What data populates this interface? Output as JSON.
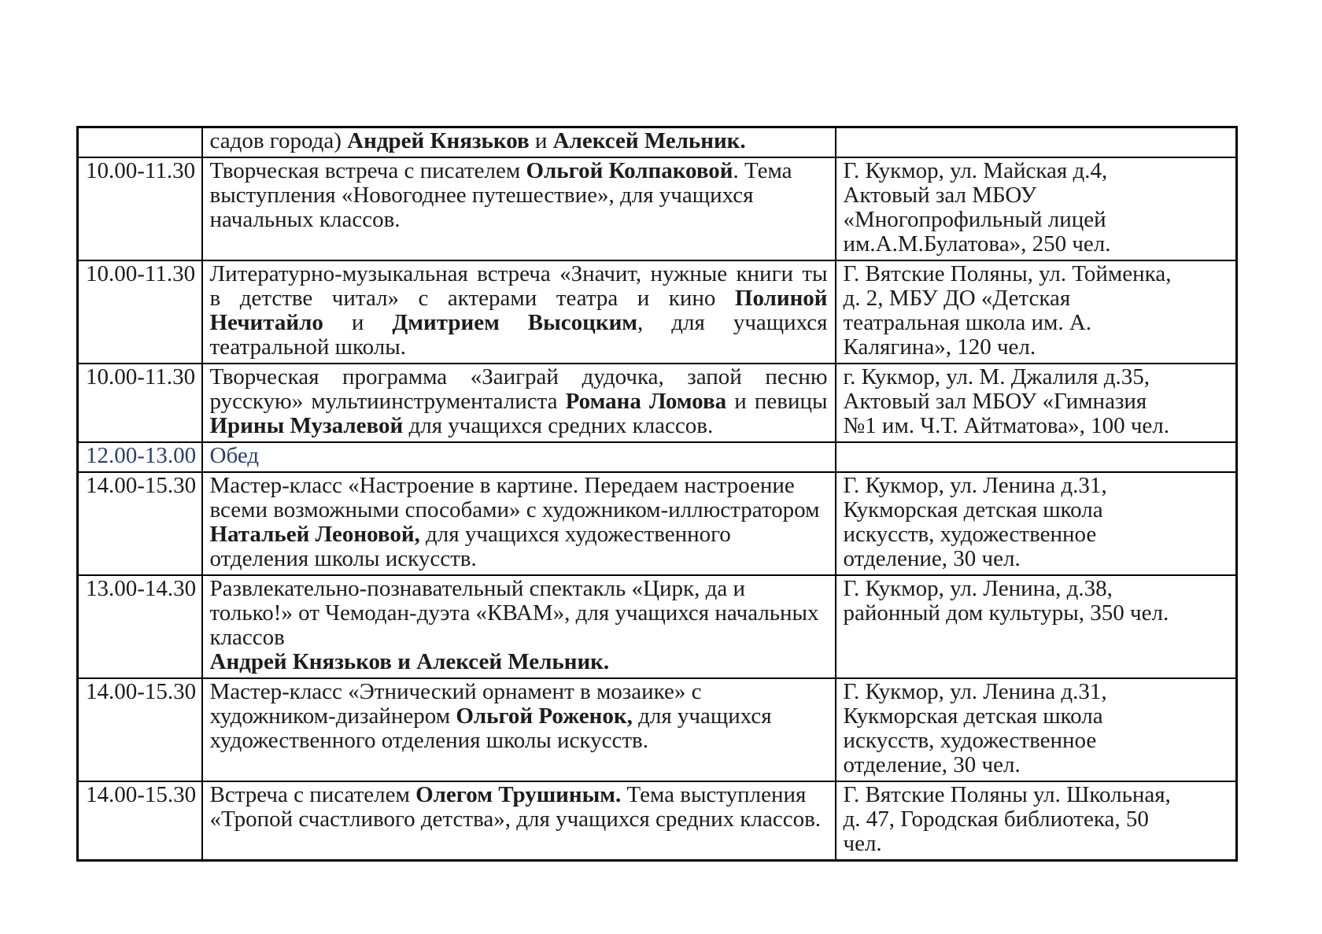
{
  "document": {
    "type": "schedule-table",
    "language": "ru",
    "colors": {
      "text": "#1c1c1c",
      "border": "#000000",
      "lunch_row_text": "#2a3f6d",
      "background": "#ffffff"
    }
  },
  "table": {
    "columns": [
      "time",
      "description",
      "location"
    ],
    "rows": [
      {
        "time": "",
        "align": "left",
        "highlight": false,
        "description": [
          {
            "text": "садов города) ",
            "bold": false
          },
          {
            "text": "Андрей Князьков",
            "bold": true
          },
          {
            "text": " и ",
            "bold": false
          },
          {
            "text": "Алексей Мельник.",
            "bold": true
          }
        ],
        "location": ""
      },
      {
        "time": "10.00-11.30",
        "align": "left",
        "highlight": false,
        "description": [
          {
            "text": "Творческая встреча с писателем ",
            "bold": false
          },
          {
            "text": "Ольгой Колпаковой",
            "bold": true
          },
          {
            "text": ". Тема выступления «Новогоднее путешествие», для учащихся начальных классов.",
            "bold": false
          }
        ],
        "location": "Г. Кукмор, ул. Майская д.4,\nАктовый зал МБОУ\n«Многопрофильный лицей\nим.А.М.Булатова», 250 чел."
      },
      {
        "time": "10.00-11.30",
        "align": "justify",
        "highlight": false,
        "description": [
          {
            "text": "Литературно-музыкальная встреча «Значит, нужные книги ты в детстве читал» с актерами театра и кино ",
            "bold": false
          },
          {
            "text": "Полиной Нечитайло",
            "bold": true
          },
          {
            "text": " и ",
            "bold": false
          },
          {
            "text": "Дмитрием Высоцким",
            "bold": true
          },
          {
            "text": ", для учащихся театральной школы.",
            "bold": false
          }
        ],
        "location": "Г. Вятские Поляны, ул. Тойменка,\nд. 2, МБУ ДО «Детская\nтеатральная школа им. А.\nКалягина», 120 чел."
      },
      {
        "time": "10.00-11.30",
        "align": "justify",
        "highlight": false,
        "description": [
          {
            "text": "Творческая программа «Заиграй дудочка, запой песню русскую» мультиинструменталиста ",
            "bold": false
          },
          {
            "text": "Романа Ломова",
            "bold": true
          },
          {
            "text": " и певицы ",
            "bold": false
          },
          {
            "text": "Ирины Музалевой",
            "bold": true
          },
          {
            "text": " для учащихся средних классов.",
            "bold": false
          }
        ],
        "location": "г. Кукмор, ул. М. Джалиля д.35,\nАктовый зал МБОУ «Гимназия\n№1 им. Ч.Т. Айтматова», 100 чел."
      },
      {
        "time": "12.00-13.00",
        "align": "left",
        "highlight": true,
        "description": [
          {
            "text": "Обед",
            "bold": false
          }
        ],
        "location": ""
      },
      {
        "time": "14.00-15.30",
        "align": "left",
        "highlight": false,
        "description": [
          {
            "text": "Мастер-класс «Настроение в картине. Передаем настроение всеми возможными способами» с художником-иллюстратором ",
            "bold": false
          },
          {
            "text": "Натальей Леоновой,",
            "bold": true
          },
          {
            "text": " для учащихся художественного отделения школы искусств.",
            "bold": false
          }
        ],
        "location": "Г. Кукмор, ул. Ленина д.31,\nКукморская детская школа\nискусств, художественное\nотделение, 30 чел."
      },
      {
        "time": "13.00-14.30",
        "align": "left",
        "highlight": false,
        "description": [
          {
            "text": "Развлекательно-познавательный спектакль «Цирк, да и только!» от Чемодан-дуэта «КВАМ», для учащихся начальных классов",
            "bold": false
          },
          {
            "break": true
          },
          {
            "text": "Андрей Князьков и Алексей Мельник.",
            "bold": true
          }
        ],
        "location": "Г. Кукмор, ул. Ленина, д.38,\nрайонный дом культуры, 350 чел."
      },
      {
        "time": "14.00-15.30",
        "align": "left",
        "highlight": false,
        "description": [
          {
            "text": "Мастер-класс «Этнический орнамент в мозаике» с художником-дизайнером ",
            "bold": false
          },
          {
            "text": "Ольгой Роженок,",
            "bold": true
          },
          {
            "text": " для учащихся художественного отделения школы искусств.",
            "bold": false
          }
        ],
        "location": "Г. Кукмор, ул. Ленина д.31,\nКукморская детская школа\nискусств, художественное\nотделение, 30 чел."
      },
      {
        "time": "14.00-15.30",
        "align": "left",
        "highlight": false,
        "description": [
          {
            "text": "Встреча с писателем ",
            "bold": false
          },
          {
            "text": "Олегом Трушиным.",
            "bold": true
          },
          {
            "text": " Тема выступления «Тропой счастливого детства», для учащихся средних классов.",
            "bold": false
          }
        ],
        "location": "Г. Вятские Поляны ул. Школьная,\nд. 47, Городская библиотека, 50\nчел."
      }
    ]
  }
}
